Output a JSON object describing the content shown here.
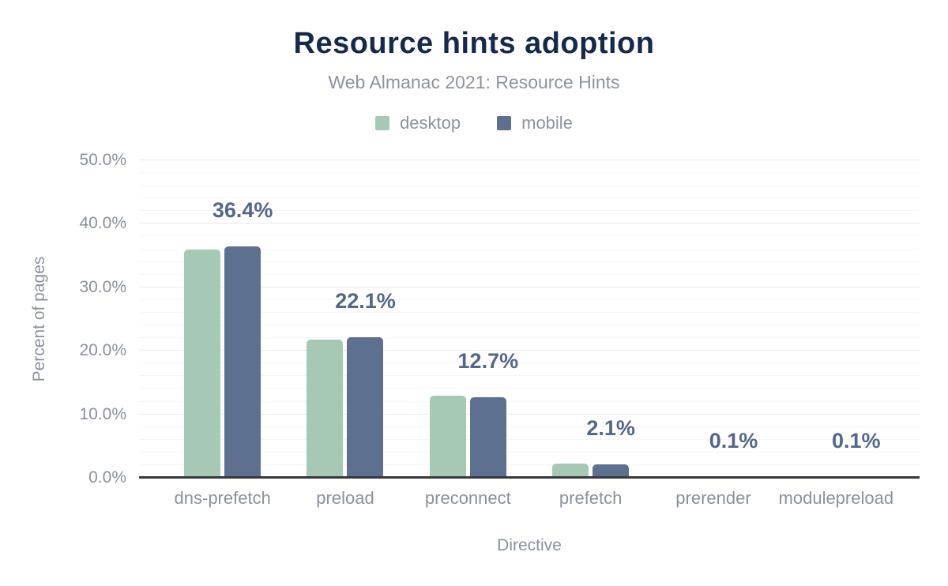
{
  "title": "Resource hints adoption",
  "subtitle": "Web Almanac 2021: Resource Hints",
  "legend": {
    "items": [
      {
        "label": "desktop",
        "color": "#a5c9b5"
      },
      {
        "label": "mobile",
        "color": "#5e7090"
      }
    ]
  },
  "colors": {
    "title": "#15294d",
    "subtitle_gray": "#8d939d",
    "axis_text_gray": "#8b919b",
    "value_label": "#54678a",
    "desktop_bar": "#a5c9b5",
    "mobile_bar": "#5e7090",
    "axis_line": "#37393c",
    "gridline_major": "#e9e9e9",
    "gridline_minor": "#f6f6f6"
  },
  "chart_data": {
    "type": "bar",
    "title": "Resource hints adoption",
    "subtitle": "Web Almanac 2021: Resource Hints",
    "categories": [
      "dns-prefetch",
      "preload",
      "preconnect",
      "prefetch",
      "prerender",
      "modulepreload"
    ],
    "series": [
      {
        "name": "desktop",
        "color": "#a5c9b5",
        "values": [
          35.9,
          21.8,
          12.9,
          2.3,
          0.1,
          0.1
        ]
      },
      {
        "name": "mobile",
        "color": "#5e7090",
        "values": [
          36.4,
          22.1,
          12.7,
          2.1,
          0.1,
          0.1
        ]
      }
    ],
    "bar_labels": {
      "series": "mobile",
      "values": [
        "36.4%",
        "22.1%",
        "12.7%",
        "2.1%",
        "0.1%",
        "0.1%"
      ]
    },
    "xlabel": "Directive",
    "ylabel": "Percent of pages",
    "ylim": [
      0,
      50
    ],
    "yticks": [
      "0.0%",
      "10.0%",
      "20.0%",
      "30.0%",
      "40.0%",
      "50.0%"
    ],
    "ytick_step": 10,
    "grid": {
      "major_step": 10,
      "minor_step": 2,
      "gridlines_on": true
    },
    "legend_position": "top"
  }
}
